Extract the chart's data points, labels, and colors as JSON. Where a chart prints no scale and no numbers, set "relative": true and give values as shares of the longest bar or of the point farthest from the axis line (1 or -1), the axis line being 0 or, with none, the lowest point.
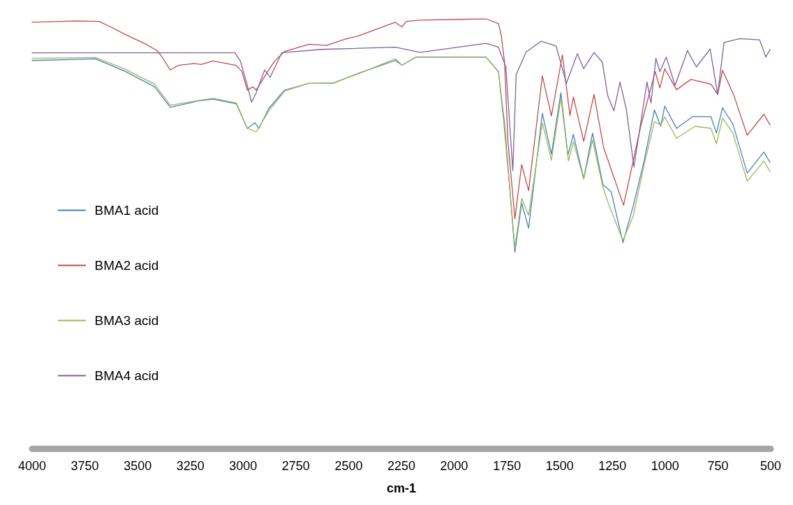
{
  "chart_data": {
    "type": "line",
    "relative": true,
    "xlabel": "cm-1",
    "xlim": [
      4000,
      500
    ],
    "xticks": [
      4000,
      3750,
      3500,
      3250,
      3000,
      2750,
      2500,
      2250,
      2000,
      1750,
      1500,
      1250,
      1000,
      750,
      500
    ],
    "grid": false,
    "legend": "left",
    "marker": "none",
    "line_style": "solid",
    "series": [
      {
        "name": "BMA1 acid",
        "color": "#4a7ebb",
        "x": [
          4000,
          3700,
          3560,
          3420,
          3345,
          3211,
          3143,
          3032,
          2980,
          2944,
          2925,
          2879,
          2804,
          2687,
          2573,
          2455,
          2279,
          2247,
          2181,
          1849,
          1790,
          1761,
          1712,
          1680,
          1647,
          1582,
          1539,
          1494,
          1461,
          1435,
          1386,
          1344,
          1295,
          1256,
          1200,
          1152,
          1099,
          1051,
          1021,
          1002,
          946,
          871,
          783,
          757,
          728,
          679,
          611,
          532,
          503
        ],
        "values": [
          0.903,
          0.907,
          0.878,
          0.842,
          0.794,
          0.809,
          0.813,
          0.802,
          0.745,
          0.758,
          0.745,
          0.791,
          0.834,
          0.85,
          0.85,
          0.873,
          0.903,
          0.892,
          0.911,
          0.911,
          0.877,
          0.755,
          0.457,
          0.571,
          0.513,
          0.78,
          0.685,
          0.828,
          0.682,
          0.731,
          0.628,
          0.734,
          0.614,
          0.598,
          0.479,
          0.563,
          0.671,
          0.788,
          0.75,
          0.797,
          0.745,
          0.772,
          0.772,
          0.734,
          0.793,
          0.755,
          0.641,
          0.69,
          0.666
        ]
      },
      {
        "name": "BMA2 acid",
        "color": "#be4b48",
        "x": [
          4000,
          3798,
          3684,
          3635,
          3560,
          3469,
          3410,
          3391,
          3345,
          3306,
          3234,
          3198,
          3143,
          3035,
          3006,
          2980,
          2954,
          2938,
          2879,
          2850,
          2804,
          2687,
          2605,
          2514,
          2455,
          2279,
          2247,
          2227,
          2162,
          1849,
          1790,
          1777,
          1761,
          1745,
          1712,
          1680,
          1647,
          1582,
          1539,
          1487,
          1451,
          1435,
          1386,
          1337,
          1292,
          1197,
          1116,
          1051,
          1047,
          1025,
          1002,
          946,
          878,
          783,
          751,
          728,
          676,
          611,
          532,
          503
        ],
        "values": [
          0.992,
          0.995,
          0.994,
          0.983,
          0.964,
          0.943,
          0.927,
          0.916,
          0.881,
          0.892,
          0.896,
          0.894,
          0.902,
          0.892,
          0.878,
          0.834,
          0.842,
          0.834,
          0.881,
          0.902,
          0.924,
          0.941,
          0.938,
          0.953,
          0.96,
          0.992,
          0.981,
          0.994,
          0.997,
          1.0,
          0.989,
          0.962,
          0.899,
          0.714,
          0.535,
          0.661,
          0.6,
          0.867,
          0.774,
          0.916,
          0.775,
          0.818,
          0.715,
          0.824,
          0.701,
          0.566,
          0.75,
          0.87,
          0.877,
          0.839,
          0.884,
          0.835,
          0.859,
          0.848,
          0.824,
          0.88,
          0.824,
          0.729,
          0.778,
          0.753
        ]
      },
      {
        "name": "BMA3 acid",
        "color": "#98b954",
        "x": [
          4000,
          3700,
          3560,
          3420,
          3345,
          3211,
          3143,
          3032,
          2980,
          2938,
          2879,
          2804,
          2687,
          2573,
          2455,
          2279,
          2247,
          2181,
          1849,
          1790,
          1764,
          1712,
          1680,
          1647,
          1582,
          1539,
          1494,
          1458,
          1435,
          1386,
          1344,
          1295,
          1266,
          1200,
          1152,
          1099,
          1051,
          1021,
          1002,
          946,
          858,
          783,
          757,
          728,
          679,
          611,
          532,
          503
        ],
        "values": [
          0.908,
          0.91,
          0.883,
          0.848,
          0.799,
          0.81,
          0.815,
          0.804,
          0.745,
          0.737,
          0.785,
          0.832,
          0.85,
          0.851,
          0.872,
          0.907,
          0.892,
          0.911,
          0.911,
          0.877,
          0.755,
          0.467,
          0.582,
          0.543,
          0.758,
          0.671,
          0.816,
          0.669,
          0.714,
          0.627,
          0.718,
          0.608,
          0.566,
          0.484,
          0.54,
          0.661,
          0.761,
          0.753,
          0.772,
          0.722,
          0.75,
          0.745,
          0.709,
          0.769,
          0.734,
          0.622,
          0.669,
          0.644
        ]
      },
      {
        "name": "BMA4 acid",
        "color": "#7d60a0",
        "x": [
          4000,
          3700,
          3198,
          3039,
          3013,
          2980,
          2960,
          2938,
          2898,
          2872,
          2817,
          2628,
          2279,
          2162,
          1849,
          1790,
          1755,
          1722,
          1706,
          1660,
          1588,
          1517,
          1468,
          1416,
          1386,
          1337,
          1298,
          1272,
          1243,
          1214,
          1184,
          1148,
          1086,
          1067,
          1044,
          1025,
          995,
          953,
          894,
          852,
          787,
          751,
          721,
          646,
          552,
          523,
          503
        ],
        "values": [
          0.921,
          0.921,
          0.921,
          0.921,
          0.902,
          0.845,
          0.806,
          0.828,
          0.881,
          0.864,
          0.921,
          0.929,
          0.934,
          0.922,
          0.943,
          0.934,
          0.888,
          0.647,
          0.87,
          0.922,
          0.948,
          0.937,
          0.85,
          0.919,
          0.884,
          0.922,
          0.899,
          0.821,
          0.786,
          0.853,
          0.79,
          0.655,
          0.853,
          0.804,
          0.908,
          0.877,
          0.911,
          0.845,
          0.926,
          0.888,
          0.93,
          0.824,
          0.945,
          0.954,
          0.951,
          0.911,
          0.929
        ]
      }
    ]
  }
}
